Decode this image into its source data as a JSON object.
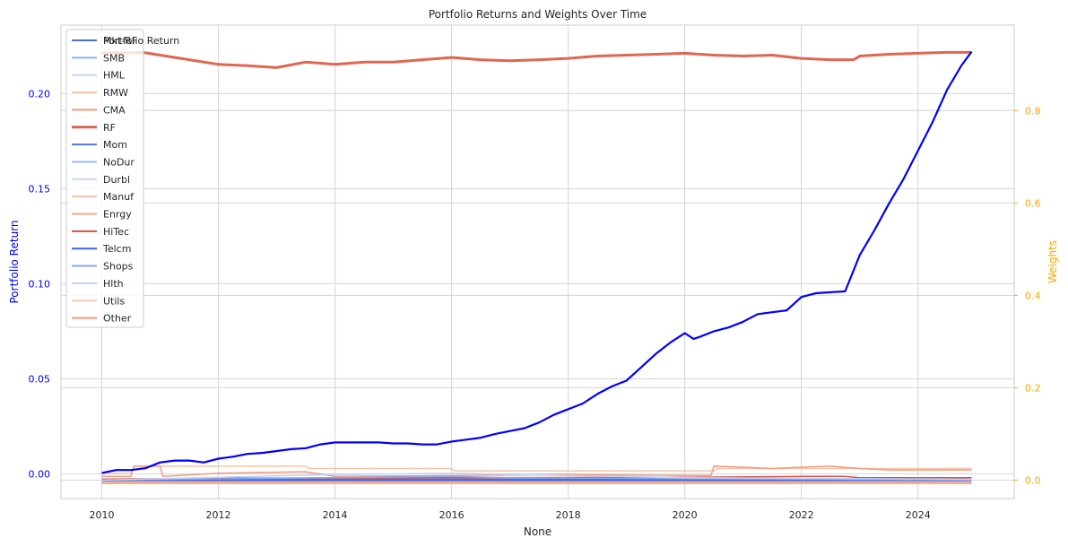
{
  "chart_data": {
    "type": "line",
    "title": "Portfolio Returns and Weights Over Time",
    "xlabel": "None",
    "ylabel_left": "Portfolio Return",
    "ylabel_right": "Weights",
    "xlim": [
      2009.3,
      2025.65
    ],
    "ylim_left": [
      -0.013,
      0.236
    ],
    "ylim_right": [
      -0.04,
      0.985
    ],
    "x_ticks": [
      2010,
      2012,
      2014,
      2016,
      2018,
      2020,
      2022,
      2024
    ],
    "y_ticks_left": [
      "0.00",
      "0.05",
      "0.10",
      "0.15",
      "0.20"
    ],
    "y_tick_values_left": [
      0,
      0.05,
      0.1,
      0.15,
      0.2
    ],
    "y_ticks_right": [
      "0.0",
      "0.2",
      "0.4",
      "0.6",
      "0.8"
    ],
    "y_tick_values_right": [
      0,
      0.2,
      0.4,
      0.6,
      0.8
    ],
    "grid": true,
    "legend_placement": "top-left",
    "colors": {
      "left_axis": "#0000ff",
      "right_axis": "#ffa500"
    },
    "portfolio_return": {
      "name": "Portfolio Return",
      "color": "#0000ff",
      "x": [
        2010.0,
        2010.25,
        2010.5,
        2010.75,
        2011.0,
        2011.25,
        2011.5,
        2011.75,
        2012.0,
        2012.25,
        2012.5,
        2012.75,
        2013.0,
        2013.25,
        2013.5,
        2013.75,
        2014.0,
        2014.25,
        2014.5,
        2014.75,
        2015.0,
        2015.25,
        2015.5,
        2015.75,
        2016.0,
        2016.25,
        2016.5,
        2016.75,
        2017.0,
        2017.25,
        2017.5,
        2017.75,
        2018.0,
        2018.25,
        2018.5,
        2018.75,
        2019.0,
        2019.25,
        2019.5,
        2019.75,
        2020.0,
        2020.15,
        2020.25,
        2020.5,
        2020.75,
        2021.0,
        2021.25,
        2021.5,
        2021.75,
        2022.0,
        2022.25,
        2022.5,
        2022.75,
        2023.0,
        2023.25,
        2023.5,
        2023.75,
        2024.0,
        2024.25,
        2024.5,
        2024.75,
        2024.92
      ],
      "y": [
        0.0005,
        0.002,
        0.002,
        0.003,
        0.006,
        0.007,
        0.007,
        0.006,
        0.008,
        0.009,
        0.0105,
        0.011,
        0.012,
        0.013,
        0.0135,
        0.0155,
        0.0165,
        0.0165,
        0.0165,
        0.0165,
        0.016,
        0.016,
        0.0155,
        0.0155,
        0.017,
        0.018,
        0.019,
        0.021,
        0.0225,
        0.024,
        0.027,
        0.031,
        0.034,
        0.037,
        0.042,
        0.046,
        0.049,
        0.056,
        0.063,
        0.069,
        0.074,
        0.071,
        0.072,
        0.075,
        0.077,
        0.08,
        0.084,
        0.085,
        0.086,
        0.093,
        0.095,
        0.0955,
        0.096,
        0.115,
        0.128,
        0.142,
        0.155,
        0.17,
        0.185,
        0.202,
        0.215,
        0.222
      ]
    },
    "rf_weight": {
      "name": "RF",
      "color": "#e06650",
      "x": [
        2010.0,
        2010.75,
        2011.0,
        2011.5,
        2012.0,
        2012.5,
        2013.0,
        2013.5,
        2014.0,
        2014.5,
        2015.0,
        2015.5,
        2016.0,
        2016.5,
        2017.0,
        2017.5,
        2018.0,
        2018.5,
        2019.0,
        2019.5,
        2020.0,
        2020.5,
        2021.0,
        2021.5,
        2022.0,
        2022.5,
        2022.9,
        2023.0,
        2023.5,
        2024.0,
        2024.5,
        2024.92
      ],
      "y": [
        0.925,
        0.925,
        0.92,
        0.91,
        0.9,
        0.897,
        0.893,
        0.905,
        0.9,
        0.905,
        0.905,
        0.91,
        0.915,
        0.91,
        0.908,
        0.91,
        0.913,
        0.918,
        0.92,
        0.922,
        0.924,
        0.92,
        0.918,
        0.92,
        0.913,
        0.91,
        0.91,
        0.918,
        0.922,
        0.924,
        0.926,
        0.926
      ]
    },
    "legend": [
      "Mkt-RF",
      "SMB",
      "HML",
      "RMW",
      "CMA",
      "RF",
      "Mom",
      "NoDur",
      "Durbl",
      "Manuf",
      "Enrgy",
      "HiTec",
      "Telcm",
      "Shops",
      "Hlth",
      "Utils",
      "Other"
    ],
    "weight_series": [
      {
        "name": "Mkt-RF",
        "color": "#4d6ce0",
        "x": [
          2010.0,
          2024.92
        ],
        "y": [
          0.002,
          0.002
        ]
      },
      {
        "name": "SMB",
        "color": "#8eaff5",
        "x": [
          2010.0,
          2024.92
        ],
        "y": [
          -0.003,
          -0.003
        ]
      },
      {
        "name": "HML",
        "color": "#c4d5f3",
        "x": [
          2010.0,
          2024.92
        ],
        "y": [
          -0.006,
          -0.006
        ]
      },
      {
        "name": "RMW",
        "color": "#f2c5ab",
        "x": [
          2010.0,
          2010.5,
          2010.55,
          2013.5,
          2013.55,
          2016.0,
          2016.05,
          2020.5,
          2020.55,
          2024.92
        ],
        "y": [
          0.015,
          0.015,
          0.03,
          0.03,
          0.025,
          0.025,
          0.02,
          0.02,
          0.025,
          0.025
        ]
      },
      {
        "name": "CMA",
        "color": "#f19b7c",
        "x": [
          2010.0,
          2010.5,
          2010.55,
          2011.0,
          2011.05,
          2012.0,
          2013.5,
          2014.0,
          2016.0,
          2018.0,
          2020.0,
          2020.45,
          2020.5,
          2021.0,
          2021.5,
          2022.0,
          2022.5,
          2023.0,
          2023.5,
          2024.92
        ],
        "y": [
          0.008,
          0.008,
          0.03,
          0.03,
          0.008,
          0.015,
          0.018,
          0.008,
          0.01,
          0.012,
          0.01,
          0.01,
          0.03,
          0.028,
          0.025,
          0.028,
          0.03,
          0.025,
          0.022,
          0.022
        ]
      },
      {
        "name": "Mom",
        "color": "#5a78e4",
        "x": [
          2010.0,
          2024.92
        ],
        "y": [
          -0.002,
          -0.002
        ]
      },
      {
        "name": "NoDur",
        "color": "#9ab9f6",
        "x": [
          2010.0,
          2024.92
        ],
        "y": [
          -0.004,
          -0.004
        ]
      },
      {
        "name": "Durbl",
        "color": "#cad8ee",
        "x": [
          2010.0,
          2024.92
        ],
        "y": [
          -0.005,
          -0.005
        ]
      },
      {
        "name": "Manuf",
        "color": "#f4c6ae",
        "x": [
          2010.0,
          2024.92
        ],
        "y": [
          -0.001,
          -0.001
        ]
      },
      {
        "name": "Enrgy",
        "color": "#f4a486",
        "x": [
          2010.0,
          2024.92
        ],
        "y": [
          -0.007,
          -0.007
        ]
      },
      {
        "name": "HiTec",
        "color": "#d65244",
        "x": [
          2010.0,
          2012.0,
          2016.0,
          2020.0,
          2022.0,
          2022.75,
          2023.0,
          2024.92
        ],
        "y": [
          0.002,
          0.004,
          0.005,
          0.006,
          0.008,
          0.008,
          0.005,
          0.005
        ]
      },
      {
        "name": "Telcm",
        "color": "#3e5fd9",
        "x": [
          2010.0,
          2024.92
        ],
        "y": [
          -0.001,
          -0.001
        ]
      },
      {
        "name": "Shops",
        "color": "#84a7f3",
        "x": [
          2010.0,
          2016.0,
          2017.0,
          2024.92
        ],
        "y": [
          0.0,
          0.008,
          0.005,
          0.0
        ]
      },
      {
        "name": "Hlth",
        "color": "#bfd3f6",
        "x": [
          2010.0,
          2014.0,
          2016.0,
          2018.0,
          2020.0,
          2024.92
        ],
        "y": [
          0.0,
          0.012,
          0.015,
          0.01,
          0.005,
          0.002
        ]
      },
      {
        "name": "Utils",
        "color": "#f2cbb7",
        "x": [
          2010.0,
          2024.92
        ],
        "y": [
          -0.004,
          -0.004
        ]
      },
      {
        "name": "Other",
        "color": "#f39b7a",
        "x": [
          2010.0,
          2024.92
        ],
        "y": [
          -0.006,
          -0.006
        ]
      }
    ]
  }
}
